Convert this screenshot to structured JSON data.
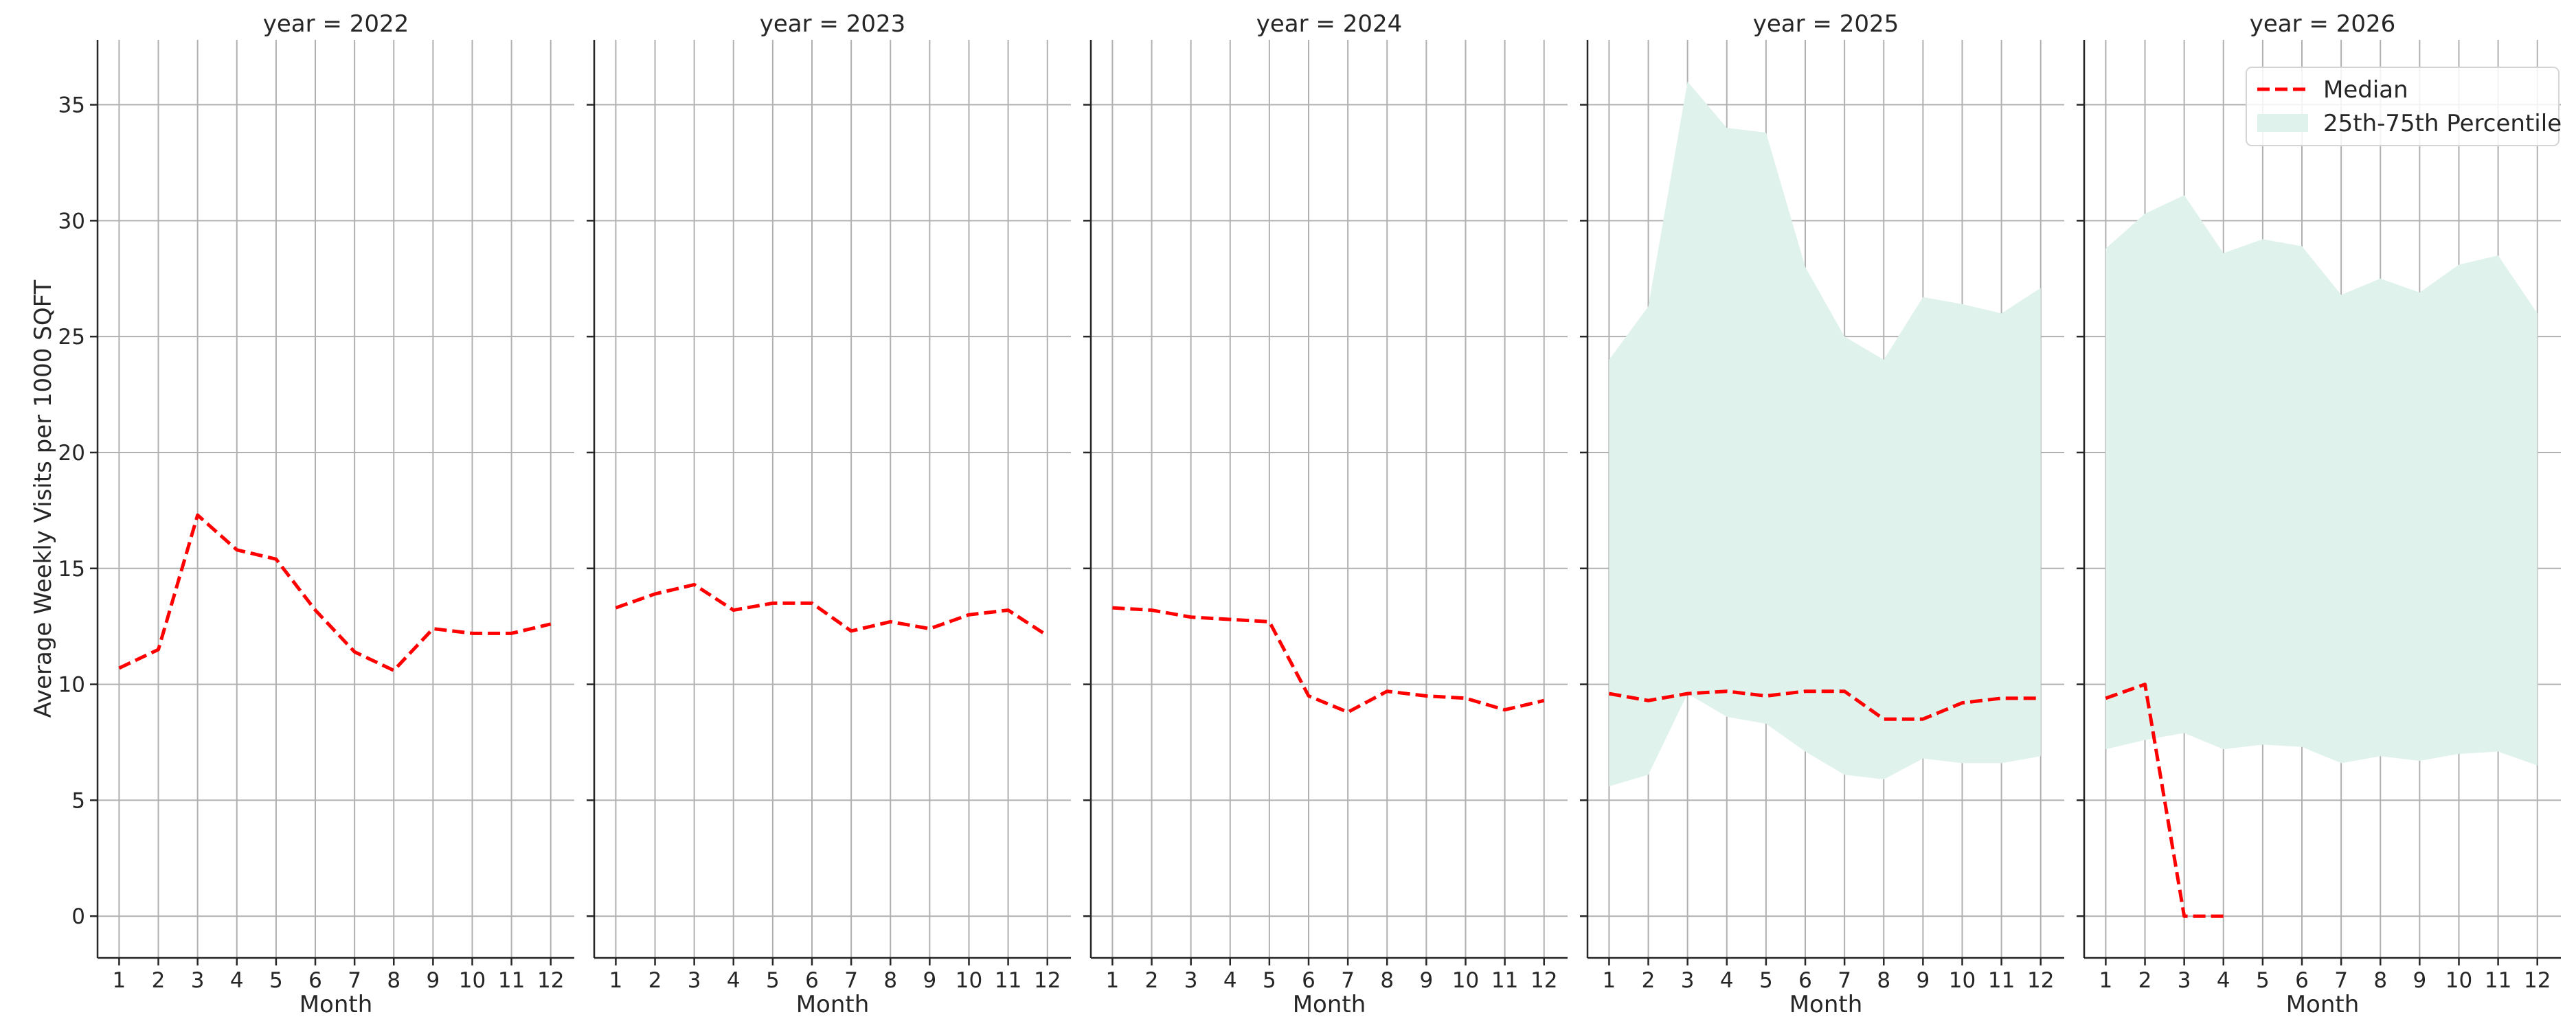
{
  "chart_data": {
    "type": "line",
    "ylabel": "Average Weekly Visits per 1000 SQFT",
    "xlabel": "Month",
    "x": [
      1,
      2,
      3,
      4,
      5,
      6,
      7,
      8,
      9,
      10,
      11,
      12
    ],
    "ylim": [
      -1.8,
      37.8
    ],
    "yticks": [
      0,
      5,
      10,
      15,
      20,
      25,
      30,
      35
    ],
    "grid": true,
    "legend": {
      "placement": "top-right",
      "entries": [
        "Median",
        "25th-75th Percentile"
      ]
    },
    "colors": {
      "median": "#ff0000",
      "band": "#dff2ec"
    },
    "panels": [
      {
        "title": "year = 2022",
        "median": [
          10.7,
          11.5,
          17.3,
          15.8,
          15.4,
          13.2,
          11.4,
          10.6,
          12.4,
          12.2,
          12.2,
          12.6
        ],
        "p25": null,
        "p75": null
      },
      {
        "title": "year = 2023",
        "median": [
          13.3,
          13.9,
          14.3,
          13.2,
          13.5,
          13.5,
          12.3,
          12.7,
          12.4,
          13.0,
          13.2,
          12.1
        ],
        "p25": null,
        "p75": null
      },
      {
        "title": "year = 2024",
        "median": [
          13.3,
          13.2,
          12.9,
          12.8,
          12.7,
          9.5,
          8.8,
          9.7,
          9.5,
          9.4,
          8.9,
          9.3
        ],
        "p25": null,
        "p75": null
      },
      {
        "title": "year = 2025",
        "median": [
          9.6,
          9.3,
          9.6,
          9.7,
          9.5,
          9.7,
          9.7,
          8.5,
          8.5,
          9.2,
          9.4,
          9.4
        ],
        "p25": [
          5.6,
          6.1,
          9.6,
          8.6,
          8.3,
          7.1,
          6.1,
          5.9,
          6.8,
          6.6,
          6.6,
          6.9
        ],
        "p75": [
          24.0,
          26.3,
          36.0,
          34.0,
          33.8,
          28.0,
          25.0,
          24.0,
          26.7,
          26.4,
          26.0,
          27.1
        ]
      },
      {
        "title": "year = 2026",
        "median": [
          9.4,
          10.0,
          0.0,
          0.0,
          null,
          null,
          null,
          null,
          null,
          null,
          null,
          null
        ],
        "p25": [
          7.2,
          7.6,
          7.9,
          7.2,
          7.4,
          7.3,
          6.6,
          6.9,
          6.7,
          7.0,
          7.1,
          6.5
        ],
        "p75": [
          28.8,
          30.3,
          31.1,
          28.6,
          29.2,
          28.9,
          26.8,
          27.5,
          26.9,
          28.1,
          28.5,
          26.0
        ]
      }
    ]
  }
}
